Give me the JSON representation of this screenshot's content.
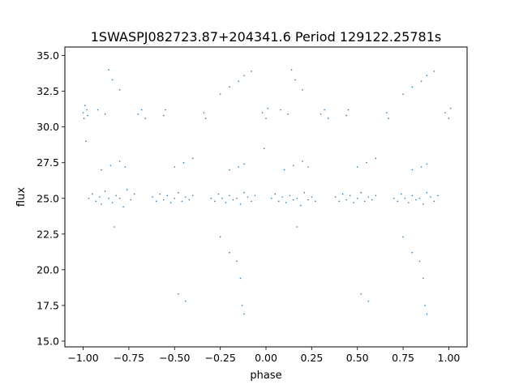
{
  "chart_data": {
    "type": "scatter",
    "title": "1SWASPJ082723.87+204341.6 Period 129122.25781s",
    "xlabel": "phase",
    "ylabel": "flux",
    "xlim": [
      -1.1,
      1.1
    ],
    "ylim": [
      14.6,
      35.6
    ],
    "xticks": [
      -1.0,
      -0.75,
      -0.5,
      -0.25,
      0.0,
      0.25,
      0.5,
      0.75,
      1.0
    ],
    "xtick_labels": [
      "−1.00",
      "−0.75",
      "−0.50",
      "−0.25",
      "0.00",
      "0.25",
      "0.50",
      "0.75",
      "1.00"
    ],
    "yticks": [
      15.0,
      17.5,
      20.0,
      22.5,
      25.0,
      27.5,
      30.0,
      32.5,
      35.0
    ],
    "ytick_labels": [
      "15.0",
      "17.5",
      "20.0",
      "22.5",
      "25.0",
      "27.5",
      "30.0",
      "32.5",
      "35.0"
    ],
    "grid": false,
    "marker_color": "#1f77b4",
    "marker_size": 0.8,
    "series": [
      {
        "points": [
          [
            -1.0,
            31.0
          ],
          [
            -0.995,
            30.6
          ],
          [
            -0.99,
            31.5
          ],
          [
            -0.985,
            29.0
          ],
          [
            -0.98,
            31.2
          ],
          [
            -0.975,
            30.8
          ],
          [
            -0.97,
            25.0
          ],
          [
            -0.95,
            25.3
          ],
          [
            -0.93,
            24.8
          ],
          [
            -0.91,
            25.1
          ],
          [
            -0.9,
            24.6
          ],
          [
            -0.88,
            25.5
          ],
          [
            -0.86,
            25.0
          ],
          [
            -0.84,
            24.7
          ],
          [
            -0.82,
            25.2
          ],
          [
            -0.8,
            25.0
          ],
          [
            -0.78,
            24.4
          ],
          [
            -0.76,
            25.6
          ],
          [
            -0.74,
            24.9
          ],
          [
            -0.72,
            25.3
          ],
          [
            -0.9,
            27.0
          ],
          [
            -0.85,
            27.3
          ],
          [
            -0.8,
            27.6
          ],
          [
            -0.77,
            27.2
          ],
          [
            -0.92,
            31.2
          ],
          [
            -0.88,
            30.9
          ],
          [
            -0.86,
            34.0
          ],
          [
            -0.84,
            33.3
          ],
          [
            -0.8,
            32.6
          ],
          [
            -0.83,
            23.0
          ],
          [
            -0.7,
            30.9
          ],
          [
            -0.68,
            31.2
          ],
          [
            -0.66,
            30.6
          ],
          [
            -0.62,
            25.1
          ],
          [
            -0.6,
            24.8
          ],
          [
            -0.58,
            25.3
          ],
          [
            -0.56,
            24.9
          ],
          [
            -0.54,
            25.2
          ],
          [
            -0.52,
            24.7
          ],
          [
            -0.5,
            25.0
          ],
          [
            -0.48,
            25.4
          ],
          [
            -0.46,
            24.8
          ],
          [
            -0.44,
            25.1
          ],
          [
            -0.42,
            24.9
          ],
          [
            -0.4,
            25.2
          ],
          [
            -0.5,
            27.2
          ],
          [
            -0.45,
            27.5
          ],
          [
            -0.4,
            27.8
          ],
          [
            -0.56,
            30.8
          ],
          [
            -0.55,
            31.2
          ],
          [
            -0.48,
            18.3
          ],
          [
            -0.44,
            17.8
          ],
          [
            -0.34,
            31.0
          ],
          [
            -0.33,
            30.6
          ],
          [
            -0.3,
            25.0
          ],
          [
            -0.28,
            24.8
          ],
          [
            -0.26,
            25.3
          ],
          [
            -0.24,
            25.0
          ],
          [
            -0.22,
            24.7
          ],
          [
            -0.2,
            25.2
          ],
          [
            -0.18,
            24.9
          ],
          [
            -0.16,
            25.0
          ],
          [
            -0.14,
            24.6
          ],
          [
            -0.12,
            25.4
          ],
          [
            -0.1,
            25.1
          ],
          [
            -0.08,
            24.8
          ],
          [
            -0.06,
            25.2
          ],
          [
            -0.2,
            27.0
          ],
          [
            -0.15,
            27.2
          ],
          [
            -0.12,
            27.4
          ],
          [
            -0.25,
            32.3
          ],
          [
            -0.2,
            32.8
          ],
          [
            -0.15,
            33.2
          ],
          [
            -0.12,
            33.6
          ],
          [
            -0.08,
            33.9
          ],
          [
            -0.25,
            22.3
          ],
          [
            -0.2,
            21.2
          ],
          [
            -0.16,
            20.6
          ],
          [
            -0.14,
            19.4
          ],
          [
            -0.13,
            17.5
          ],
          [
            -0.12,
            16.9
          ],
          [
            -0.02,
            31.0
          ],
          [
            0.0,
            30.6
          ],
          [
            0.01,
            31.3
          ],
          [
            -0.01,
            28.5
          ],
          [
            0.03,
            25.0
          ],
          [
            0.05,
            25.3
          ],
          [
            0.07,
            24.8
          ],
          [
            0.09,
            25.1
          ],
          [
            0.11,
            24.7
          ],
          [
            0.13,
            25.2
          ],
          [
            0.15,
            24.9
          ],
          [
            0.17,
            25.0
          ],
          [
            0.19,
            24.5
          ],
          [
            0.21,
            25.4
          ],
          [
            0.23,
            24.9
          ],
          [
            0.25,
            25.1
          ],
          [
            0.27,
            24.8
          ],
          [
            0.1,
            27.0
          ],
          [
            0.15,
            27.3
          ],
          [
            0.2,
            27.6
          ],
          [
            0.23,
            27.2
          ],
          [
            0.08,
            31.2
          ],
          [
            0.12,
            30.9
          ],
          [
            0.14,
            34.0
          ],
          [
            0.16,
            33.3
          ],
          [
            0.2,
            32.6
          ],
          [
            0.17,
            23.0
          ],
          [
            0.3,
            30.9
          ],
          [
            0.32,
            31.2
          ],
          [
            0.34,
            30.6
          ],
          [
            0.38,
            25.1
          ],
          [
            0.4,
            24.8
          ],
          [
            0.42,
            25.3
          ],
          [
            0.44,
            24.9
          ],
          [
            0.46,
            25.2
          ],
          [
            0.48,
            24.7
          ],
          [
            0.5,
            25.0
          ],
          [
            0.52,
            25.4
          ],
          [
            0.54,
            24.8
          ],
          [
            0.56,
            25.1
          ],
          [
            0.58,
            24.9
          ],
          [
            0.6,
            25.2
          ],
          [
            0.5,
            27.2
          ],
          [
            0.55,
            27.5
          ],
          [
            0.6,
            27.8
          ],
          [
            0.44,
            30.8
          ],
          [
            0.45,
            31.2
          ],
          [
            0.52,
            18.3
          ],
          [
            0.56,
            17.8
          ],
          [
            0.66,
            31.0
          ],
          [
            0.67,
            30.6
          ],
          [
            0.7,
            25.0
          ],
          [
            0.72,
            24.8
          ],
          [
            0.74,
            25.3
          ],
          [
            0.76,
            25.0
          ],
          [
            0.78,
            24.7
          ],
          [
            0.8,
            25.2
          ],
          [
            0.82,
            24.9
          ],
          [
            0.84,
            25.0
          ],
          [
            0.86,
            24.6
          ],
          [
            0.88,
            25.4
          ],
          [
            0.9,
            25.1
          ],
          [
            0.92,
            24.8
          ],
          [
            0.94,
            25.2
          ],
          [
            0.8,
            27.0
          ],
          [
            0.85,
            27.2
          ],
          [
            0.88,
            27.4
          ],
          [
            0.75,
            32.3
          ],
          [
            0.8,
            32.8
          ],
          [
            0.85,
            33.2
          ],
          [
            0.88,
            33.6
          ],
          [
            0.92,
            33.9
          ],
          [
            0.75,
            22.3
          ],
          [
            0.8,
            21.2
          ],
          [
            0.84,
            20.6
          ],
          [
            0.86,
            19.4
          ],
          [
            0.87,
            17.5
          ],
          [
            0.88,
            16.9
          ],
          [
            0.98,
            31.0
          ],
          [
            1.0,
            30.6
          ],
          [
            1.01,
            31.3
          ]
        ]
      }
    ]
  }
}
